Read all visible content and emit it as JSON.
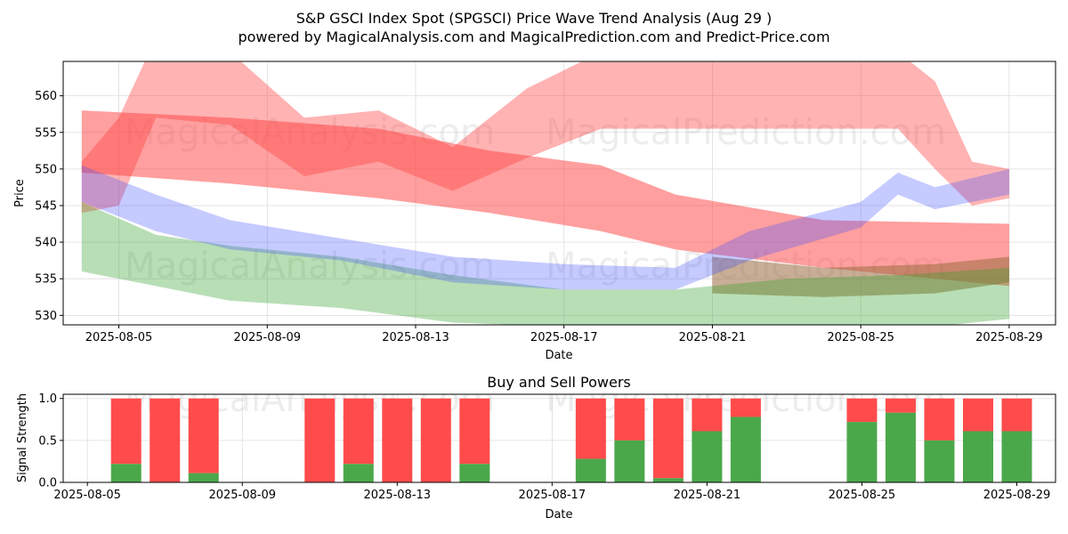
{
  "title_line1": "S&P GSCI Index Spot (SPGSCI) Price Wave Trend Analysis (Aug 29 )",
  "title_line2": "powered by MagicalAnalysis.com and MagicalPrediction.com and Predict-Price.com",
  "watermarks": [
    "MagicalAnalysis.com",
    "MagicalPrediction.com"
  ],
  "colors": {
    "red_band": "#ff4040",
    "green_band": "#33a02c",
    "blue_band": "#4050ff",
    "buy_bar": "#4aa84a",
    "sell_bar": "#ff4b4b",
    "grid": "#dddddd"
  },
  "chart_data": [
    {
      "type": "area",
      "title": "",
      "xlabel": "Date",
      "ylabel": "Price",
      "x_range": [
        "2025-08-03T12:00",
        "2025-08-30T06:00"
      ],
      "ylim": [
        528.7,
        564.7
      ],
      "x_ticks": [
        "2025-08-05",
        "2025-08-09",
        "2025-08-13",
        "2025-08-17",
        "2025-08-21",
        "2025-08-25",
        "2025-08-29"
      ],
      "x_tick_labels": [
        "2025-08-05",
        "2025-08-09",
        "2025-08-13",
        "2025-08-17",
        "2025-08-21",
        "2025-08-25",
        "2025-08-29"
      ],
      "y_ticks": [
        530,
        535,
        540,
        545,
        550,
        555,
        560
      ],
      "y_tick_labels": [
        "530",
        "535",
        "540",
        "545",
        "550",
        "555",
        "560"
      ],
      "grid": true,
      "series": [
        {
          "name": "red-wave-high",
          "color": "red",
          "opacity": 0.4,
          "x": [
            "2025-08-04",
            "2025-08-05",
            "2025-08-06",
            "2025-08-08",
            "2025-08-10",
            "2025-08-12",
            "2025-08-14",
            "2025-08-16",
            "2025-08-18",
            "2025-08-20",
            "2025-08-22",
            "2025-08-24",
            "2025-08-26",
            "2025-08-27",
            "2025-08-28",
            "2025-08-29"
          ],
          "lower": [
            544.0,
            545.0,
            557.0,
            556.0,
            549.0,
            551.0,
            547.0,
            551.5,
            555.5,
            555.5,
            555.5,
            555.5,
            555.5,
            550.0,
            545.0,
            546.0
          ],
          "upper": [
            551.0,
            557.0,
            568.0,
            566.0,
            557.0,
            558.0,
            553.0,
            561.0,
            566.0,
            566.0,
            566.0,
            566.0,
            566.0,
            562.0,
            551.0,
            550.0
          ]
        },
        {
          "name": "red-wave-mid",
          "color": "red",
          "opacity": 0.5,
          "x": [
            "2025-08-04",
            "2025-08-08",
            "2025-08-12",
            "2025-08-15",
            "2025-08-18",
            "2025-08-20",
            "2025-08-24",
            "2025-08-29"
          ],
          "lower": [
            549.5,
            548.0,
            546.0,
            544.0,
            541.5,
            539.0,
            536.5,
            534.0
          ],
          "upper": [
            558.0,
            557.0,
            555.5,
            552.5,
            550.5,
            546.5,
            543.0,
            542.5
          ]
        },
        {
          "name": "brown-wave",
          "color": "brown",
          "opacity": 0.55,
          "x": [
            "2025-08-21",
            "2025-08-24",
            "2025-08-27",
            "2025-08-29"
          ],
          "lower": [
            533.0,
            532.5,
            533.0,
            534.5
          ],
          "upper": [
            538.0,
            536.5,
            537.0,
            538.0
          ]
        },
        {
          "name": "green-wave",
          "color": "green",
          "opacity": 0.35,
          "x": [
            "2025-08-04",
            "2025-08-06",
            "2025-08-08",
            "2025-08-11",
            "2025-08-14",
            "2025-08-17",
            "2025-08-20",
            "2025-08-23",
            "2025-08-26",
            "2025-08-29"
          ],
          "lower": [
            536.0,
            534.0,
            532.0,
            531.0,
            529.0,
            528.5,
            528.5,
            528.5,
            528.0,
            529.5
          ],
          "upper": [
            545.5,
            541.0,
            539.5,
            538.0,
            535.5,
            533.5,
            533.5,
            535.0,
            535.5,
            536.5
          ]
        },
        {
          "name": "blue-wave",
          "color": "blue",
          "opacity": 0.3,
          "x": [
            "2025-08-04",
            "2025-08-06",
            "2025-08-08",
            "2025-08-11",
            "2025-08-14",
            "2025-08-17",
            "2025-08-20",
            "2025-08-22",
            "2025-08-25",
            "2025-08-26",
            "2025-08-27",
            "2025-08-29"
          ],
          "lower": [
            545.5,
            541.5,
            539.0,
            537.5,
            534.5,
            533.5,
            533.5,
            537.5,
            542.0,
            546.5,
            544.5,
            546.5
          ],
          "upper": [
            550.5,
            546.5,
            543.0,
            540.5,
            538.0,
            537.0,
            536.5,
            541.5,
            545.5,
            549.5,
            547.5,
            550.0
          ]
        }
      ]
    },
    {
      "type": "bar",
      "title": "Buy and Sell Powers",
      "xlabel": "Date",
      "ylabel": "Signal Strength",
      "x_range": [
        "2025-08-04T09:00",
        "2025-08-30T00:00"
      ],
      "ylim": [
        0,
        1.05
      ],
      "x_ticks": [
        "2025-08-05",
        "2025-08-09",
        "2025-08-13",
        "2025-08-17",
        "2025-08-21",
        "2025-08-25",
        "2025-08-29"
      ],
      "x_tick_labels": [
        "2025-08-05",
        "2025-08-09",
        "2025-08-13",
        "2025-08-17",
        "2025-08-21",
        "2025-08-25",
        "2025-08-29"
      ],
      "y_ticks": [
        0.0,
        0.5,
        1.0
      ],
      "y_tick_labels": [
        "0.0",
        "0.5",
        "1.0"
      ],
      "grid": true,
      "categories": [
        "2025-08-06",
        "2025-08-07",
        "2025-08-08",
        "2025-08-11",
        "2025-08-12",
        "2025-08-13",
        "2025-08-14",
        "2025-08-15",
        "2025-08-18",
        "2025-08-19",
        "2025-08-20",
        "2025-08-21",
        "2025-08-22",
        "2025-08-25",
        "2025-08-26",
        "2025-08-27",
        "2025-08-28",
        "2025-08-29"
      ],
      "series": [
        {
          "name": "Buy",
          "color": "green",
          "values": [
            0.22,
            0.0,
            0.11,
            0.0,
            0.22,
            0.0,
            0.0,
            0.22,
            0.28,
            0.5,
            0.05,
            0.61,
            0.78,
            0.72,
            0.83,
            0.5,
            0.61,
            0.61
          ]
        },
        {
          "name": "Sell",
          "color": "red",
          "values": [
            0.78,
            1.0,
            0.89,
            1.0,
            0.78,
            1.0,
            1.0,
            0.78,
            0.72,
            0.5,
            0.95,
            0.39,
            0.22,
            0.28,
            0.17,
            0.5,
            0.39,
            0.39
          ]
        }
      ]
    }
  ]
}
